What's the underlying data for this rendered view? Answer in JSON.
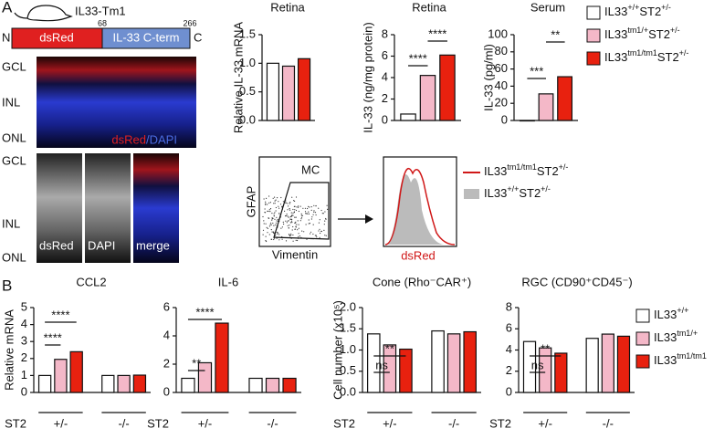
{
  "panel_labels": [
    "A",
    "B"
  ],
  "construct": {
    "mouse": "IL33-Tm1",
    "n_term": "N",
    "c_term": "C",
    "dsred": "dsRed",
    "il33": "IL-33 C-term",
    "pos_start": "68",
    "pos_end": "266"
  },
  "images": {
    "layers": [
      "GCL",
      "INL",
      "ONL"
    ],
    "overlay_red": "dsRed",
    "overlay_blue": "/DAPI",
    "channels": [
      "dsRed",
      "DAPI",
      "merge"
    ]
  },
  "flow": {
    "y_label": "GFAP",
    "x_label": "Vimentin",
    "gate": "MC",
    "hist_label": "dsRed",
    "legend": [
      [
        "IL33",
        "tm1/tm1",
        "ST2",
        "+/-"
      ],
      [
        "IL33",
        "+/+",
        "ST2",
        "+/-"
      ]
    ]
  },
  "legends": {
    "top": [
      [
        "IL33",
        "+/+",
        "ST2",
        "+/-"
      ],
      [
        "IL33",
        "tm1/+",
        "ST2",
        "+/-"
      ],
      [
        "IL33",
        "tm1/tm1",
        "ST2",
        "+/-"
      ]
    ],
    "bottom": [
      [
        "IL33",
        "+/+"
      ],
      [
        "IL33",
        "tm1/+"
      ],
      [
        "IL33",
        "tm1/tm1"
      ]
    ]
  },
  "chart_data": [
    {
      "type": "bar",
      "title": "Retina",
      "ylabel": "Relative IL-33 mRNA",
      "categories": [
        null,
        null,
        null
      ],
      "values": [
        1.0,
        0.95,
        1.08
      ],
      "colors": [
        "#ffffff",
        "#f4b8c8",
        "#e8210f"
      ],
      "ylim": [
        0,
        1.5
      ],
      "yticks": [
        {
          "value": 0,
          "label": "0.0"
        },
        {
          "value": 0.5,
          "label": "0.5"
        },
        {
          "value": 1,
          "label": "1.0"
        },
        {
          "value": 1.5,
          "label": "1.5"
        }
      ],
      "annotations": []
    },
    {
      "type": "bar",
      "title": "Retina",
      "ylabel": "IL-33 (ng/mg protein)",
      "categories": [
        null,
        null,
        null
      ],
      "values": [
        0.6,
        4.2,
        6.1
      ],
      "colors": [
        "#ffffff",
        "#f4b8c8",
        "#e8210f"
      ],
      "ylim": [
        0,
        8
      ],
      "yticks": [
        0,
        2,
        4,
        6,
        8
      ],
      "annotations": [
        "****",
        "****"
      ]
    },
    {
      "type": "bar",
      "title": "Serum",
      "ylabel": "IL-33 (pg/ml)",
      "categories": [
        null,
        null,
        null
      ],
      "values": [
        0,
        31,
        51
      ],
      "colors": [
        "#ffffff",
        "#f4b8c8",
        "#e8210f"
      ],
      "ylim": [
        0,
        100
      ],
      "yticks": [
        0,
        20,
        40,
        60,
        80,
        100
      ],
      "annotations": [
        "***",
        "**"
      ]
    },
    {
      "type": "bar",
      "title": "CCL2",
      "ylabel": "Relative mRNA",
      "categories": [
        null,
        null,
        null,
        null,
        null,
        null
      ],
      "group_label": "ST2",
      "groups": [
        "+/-",
        "-/-"
      ],
      "values": [
        1.0,
        1.95,
        2.4,
        1.0,
        1.0,
        1.02
      ],
      "colors": [
        "#ffffff",
        "#f4b8c8",
        "#e8210f",
        "#ffffff",
        "#f4b8c8",
        "#e8210f"
      ],
      "ylim": [
        0,
        5
      ],
      "yticks": [
        0,
        1,
        2,
        3,
        4,
        5
      ],
      "annotations": [
        "****",
        "****"
      ]
    },
    {
      "type": "bar",
      "title": "IL-6",
      "categories": [
        null,
        null,
        null,
        null,
        null,
        null
      ],
      "group_label": "ST2",
      "groups": [
        "+/-",
        "-/-"
      ],
      "values": [
        1.0,
        2.1,
        4.9,
        1.0,
        1.0,
        1.0
      ],
      "colors": [
        "#ffffff",
        "#f4b8c8",
        "#e8210f",
        "#ffffff",
        "#f4b8c8",
        "#e8210f"
      ],
      "ylim": [
        0,
        6
      ],
      "yticks": [
        0,
        2,
        4,
        6
      ],
      "annotations": [
        "**",
        "****"
      ]
    },
    {
      "type": "bar",
      "title": "Cone (Rho⁻CAR⁺)",
      "ylabel": "Cell number (x10⁵)",
      "categories": [
        null,
        null,
        null,
        null,
        null,
        null
      ],
      "group_label": "ST2",
      "groups": [
        "+/-",
        "-/-"
      ],
      "values": [
        1.38,
        1.12,
        1.02,
        1.45,
        1.38,
        1.43
      ],
      "colors": [
        "#ffffff",
        "#f4b8c8",
        "#e8210f",
        "#ffffff",
        "#f4b8c8",
        "#e8210f"
      ],
      "ylim": [
        0,
        2
      ],
      "yticks": [
        {
          "value": 0,
          "label": "0.0"
        },
        {
          "value": 0.5,
          "label": "0.5"
        },
        {
          "value": 1,
          "label": "1.0"
        },
        {
          "value": 1.5,
          "label": "1.5"
        },
        {
          "value": 2,
          "label": "2.0"
        }
      ],
      "annotations": [
        "ns",
        "**"
      ]
    },
    {
      "type": "bar",
      "title": "RGC (CD90⁺CD45⁻)",
      "categories": [
        null,
        null,
        null,
        null,
        null,
        null
      ],
      "group_label": "ST2",
      "groups": [
        "+/-",
        "-/-"
      ],
      "values": [
        4.8,
        4.2,
        3.7,
        5.1,
        5.5,
        5.3
      ],
      "colors": [
        "#ffffff",
        "#f4b8c8",
        "#e8210f",
        "#ffffff",
        "#f4b8c8",
        "#e8210f"
      ],
      "ylim": [
        0,
        8
      ],
      "yticks": [
        0,
        2,
        4,
        6,
        8
      ],
      "annotations": [
        "ns",
        "**"
      ]
    }
  ]
}
